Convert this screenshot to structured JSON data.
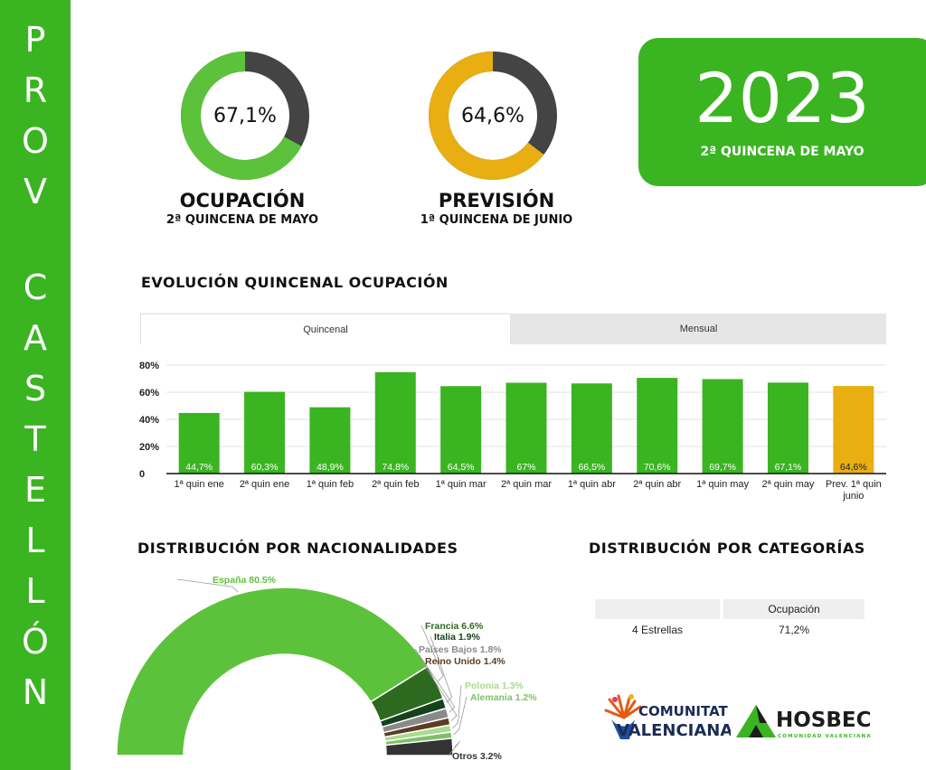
{
  "sidebar": {
    "letters": [
      "P",
      "R",
      "O",
      "V",
      "C",
      "A",
      "S",
      "T",
      "E",
      "L",
      "L",
      "Ó",
      "N"
    ]
  },
  "kpis": {
    "ocupacion": {
      "value": "67,1%",
      "percent": 67.1,
      "title": "OCUPACIÓN",
      "subtitle": "2ª QUINCENA DE MAYO",
      "color": "#5cc23c",
      "rest_color": "#444444"
    },
    "prevision": {
      "value": "64,6%",
      "percent": 64.6,
      "title": "PREVISIÓN",
      "subtitle": "1ª QUINCENA DE JUNIO",
      "color": "#e8ae12",
      "rest_color": "#444444"
    }
  },
  "year_box": {
    "year": "2023",
    "subtitle": "2ª QUINCENA DE MAYO"
  },
  "evolution": {
    "title": "EVOLUCIÓN QUINCENAL OCUPACIÓN",
    "tabs": [
      {
        "label": "Quincenal",
        "active": true
      },
      {
        "label": "Mensual",
        "active": false
      }
    ]
  },
  "nationalities": {
    "title": "DISTRIBUCIÓN POR NACIONALIDADES"
  },
  "categories": {
    "title": "DISTRIBUCIÓN POR CATEGORÍAS",
    "header": "Ocupación",
    "rows": [
      {
        "name": "4 Estrellas",
        "value": "71,2%"
      }
    ]
  },
  "logos": {
    "cv_line1": "COMUNITAT",
    "cv_line2": "VALENCIANA",
    "hosbec": "HOSBEC",
    "hosbec_sub": "COMUNIDAD VALENCIANA"
  },
  "chart_data": [
    {
      "type": "bar",
      "categories": [
        "1ª quin ene",
        "2ª quin ene",
        "1ª quin feb",
        "2ª quin feb",
        "1ª quin mar",
        "2ª quin mar",
        "1ª quin abr",
        "2ª quin abr",
        "1ª quin may",
        "2ª quin may",
        "Prev. 1ª quin junio"
      ],
      "values": [
        44.7,
        60.3,
        48.9,
        74.8,
        64.5,
        67,
        66.5,
        70.6,
        69.7,
        67.1,
        64.6
      ],
      "value_labels": [
        "44,7%",
        "60,3%",
        "48,9%",
        "74,8%",
        "64,5%",
        "67%",
        "66,5%",
        "70,6%",
        "69,7%",
        "67,1%",
        "64,6%"
      ],
      "yticks": [
        "0",
        "20%",
        "40%",
        "60%",
        "80%"
      ],
      "ytick_values": [
        0,
        20,
        40,
        60,
        80
      ],
      "ylim": [
        0,
        80
      ],
      "colors": [
        "#3bb422",
        "#3bb422",
        "#3bb422",
        "#3bb422",
        "#3bb422",
        "#3bb422",
        "#3bb422",
        "#3bb422",
        "#3bb422",
        "#3bb422",
        "#e8ae12"
      ],
      "grid": true
    },
    {
      "type": "pie",
      "style": "half-donut",
      "labels": [
        "España 80.5%",
        "Francia 6.6%",
        "Italia 1.9%",
        "Países Bajos 1.8%",
        "Reino Unido 1.4%",
        "Polonia 1.3%",
        "Alemania 1.2%",
        "Otros 3.2%"
      ],
      "values": [
        80.5,
        6.6,
        1.9,
        1.8,
        1.4,
        1.3,
        1.2,
        3.2
      ],
      "colors": [
        "#5cc23c",
        "#2d6a1f",
        "#15421b",
        "#8a8a8a",
        "#5b3d22",
        "#a6dc8e",
        "#7fbf6a",
        "#333333"
      ],
      "label_colors": [
        "#5cc23c",
        "#2d6a1f",
        "#15421b",
        "#8a8a8a",
        "#5b3d22",
        "#a6dc8e",
        "#7fbf6a",
        "#333333"
      ]
    }
  ]
}
